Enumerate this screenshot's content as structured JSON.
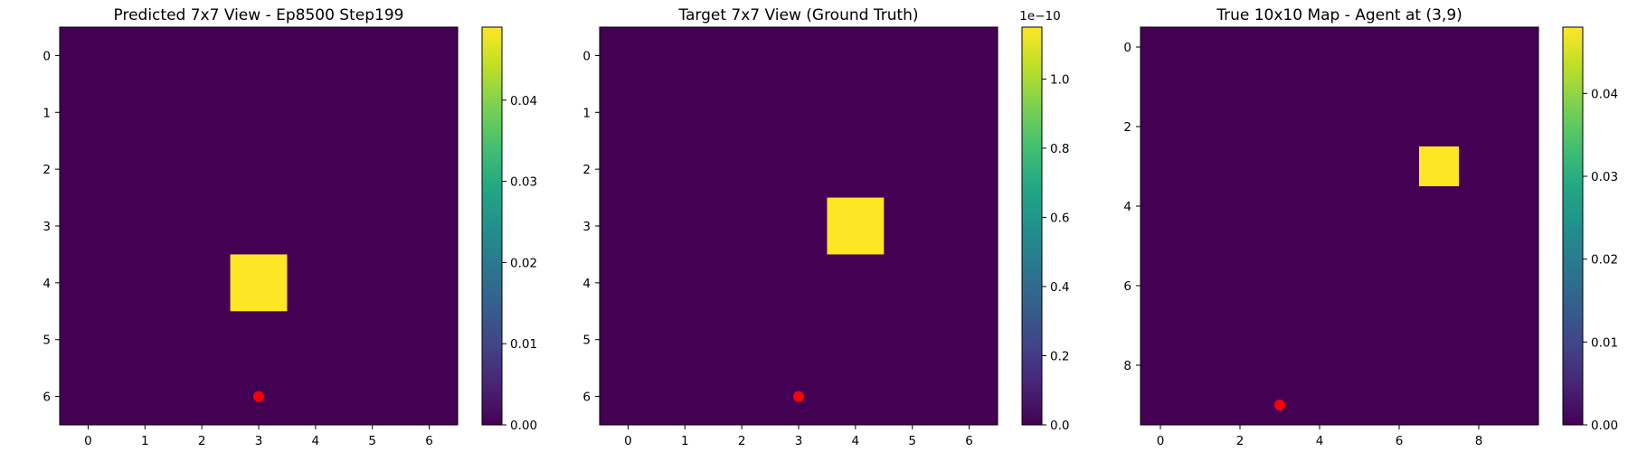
{
  "chart_data": [
    {
      "type": "heatmap",
      "title": "Predicted 7x7 View - Ep8500 Step199",
      "grid_size": 7,
      "x_ticks": [
        0,
        1,
        2,
        3,
        4,
        5,
        6
      ],
      "y_ticks": [
        0,
        1,
        2,
        3,
        4,
        5,
        6
      ],
      "nonzero_cells": [
        {
          "row": 4,
          "col": 3,
          "value": 0.049
        }
      ],
      "background_value": 0,
      "agent_marker": {
        "row": 6,
        "col": 3,
        "color": "#ff0000"
      },
      "colorbar": {
        "min": 0,
        "max": 0.049,
        "ticks": [
          0.0,
          0.01,
          0.02,
          0.03,
          0.04
        ],
        "tick_labels": [
          "0.00",
          "0.01",
          "0.02",
          "0.03",
          "0.04"
        ],
        "offset_label": ""
      },
      "colormap": "viridis"
    },
    {
      "type": "heatmap",
      "title": "Target 7x7 View (Ground Truth)",
      "grid_size": 7,
      "x_ticks": [
        0,
        1,
        2,
        3,
        4,
        5,
        6
      ],
      "y_ticks": [
        0,
        1,
        2,
        3,
        4,
        5,
        6
      ],
      "nonzero_cells": [
        {
          "row": 3,
          "col": 4,
          "value": 1.15e-10
        }
      ],
      "background_value": 0,
      "agent_marker": {
        "row": 6,
        "col": 3,
        "color": "#ff0000"
      },
      "colorbar": {
        "min": 0,
        "max": 1.15,
        "ticks": [
          0.0,
          0.2,
          0.4,
          0.6,
          0.8,
          1.0
        ],
        "tick_labels": [
          "0.0",
          "0.2",
          "0.4",
          "0.6",
          "0.8",
          "1.0"
        ],
        "offset_label": "1e−10"
      },
      "colormap": "viridis"
    },
    {
      "type": "heatmap",
      "title": "True 10x10 Map - Agent at (3,9)",
      "grid_size": 10,
      "x_ticks": [
        0,
        2,
        4,
        6,
        8
      ],
      "y_ticks": [
        0,
        2,
        4,
        6,
        8
      ],
      "nonzero_cells": [
        {
          "row": 3,
          "col": 7,
          "value": 0.048
        }
      ],
      "background_value": 0,
      "agent_marker": {
        "row": 9,
        "col": 3,
        "color": "#ff0000"
      },
      "colorbar": {
        "min": 0,
        "max": 0.048,
        "ticks": [
          0.0,
          0.01,
          0.02,
          0.03,
          0.04
        ],
        "tick_labels": [
          "0.00",
          "0.01",
          "0.02",
          "0.03",
          "0.04"
        ],
        "offset_label": ""
      },
      "colormap": "viridis"
    }
  ]
}
